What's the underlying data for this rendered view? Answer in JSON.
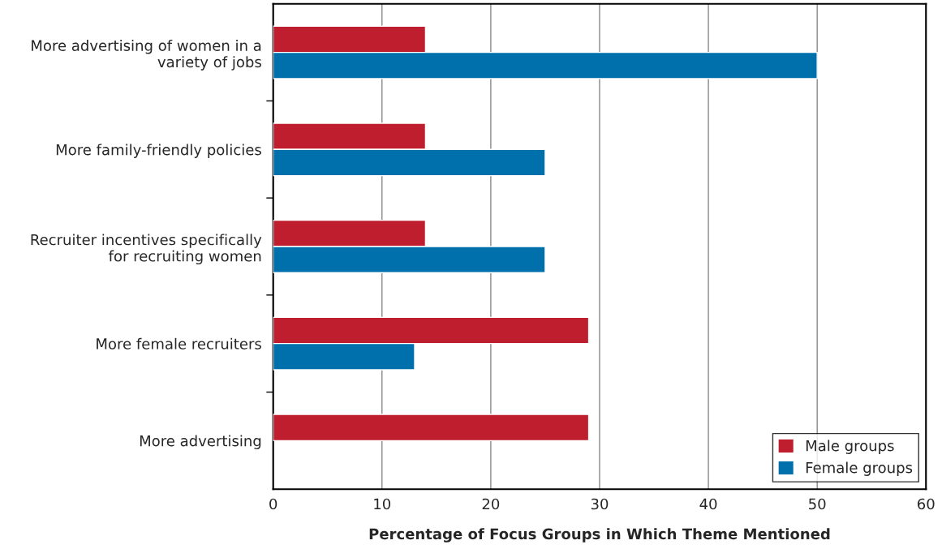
{
  "chart_data": {
    "type": "bar",
    "orientation": "horizontal",
    "xlabel": "Percentage of Focus Groups in Which Theme Mentioned",
    "categories": [
      "More advertising of women in a\nvariety of jobs",
      "More family-friendly policies",
      "Recruiter incentives specifically\nfor recruiting women",
      "More female recruiters",
      "More advertising"
    ],
    "series": [
      {
        "name": "Male groups",
        "color": "#be1e2d",
        "values": [
          14,
          14,
          14,
          29,
          29
        ]
      },
      {
        "name": "Female groups",
        "color": "#0070ad",
        "values": [
          50,
          25,
          25,
          13,
          null
        ]
      }
    ],
    "xlim": [
      0,
      60
    ],
    "xticks": [
      0,
      10,
      20,
      30,
      40,
      50,
      60
    ],
    "grid": "x",
    "legend": "bottom right"
  }
}
